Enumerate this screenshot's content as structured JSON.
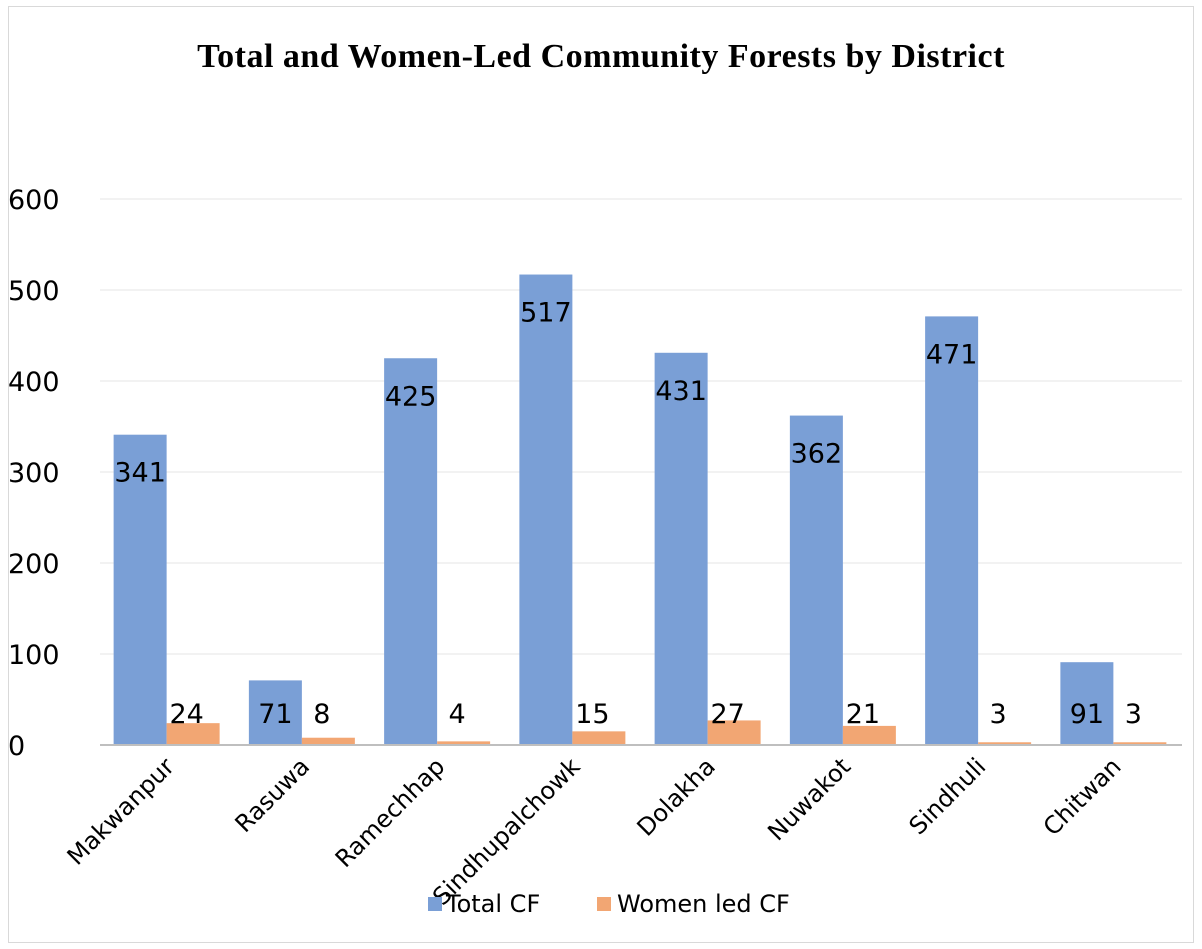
{
  "chart_data": {
    "type": "bar",
    "title": "Total and Women-Led Community Forests by District",
    "xlabel": "",
    "ylabel": "",
    "ylim": [
      0,
      600
    ],
    "yticks": [
      0,
      100,
      200,
      300,
      400,
      500,
      600
    ],
    "grid": true,
    "legend_position": "bottom",
    "categories": [
      "Makwanpur",
      "Rasuwa",
      "Ramechhap",
      "Sindhupalchowk",
      "Dolakha",
      "Nuwakot",
      "Sindhuli",
      "Chitwan"
    ],
    "series": [
      {
        "name": "Total CF",
        "color": "#7a9fd6",
        "values": [
          341,
          71,
          425,
          517,
          431,
          362,
          471,
          91
        ]
      },
      {
        "name": "Women led CF",
        "color": "#f2a673",
        "values": [
          24,
          8,
          4,
          15,
          27,
          21,
          3,
          3
        ]
      }
    ]
  }
}
